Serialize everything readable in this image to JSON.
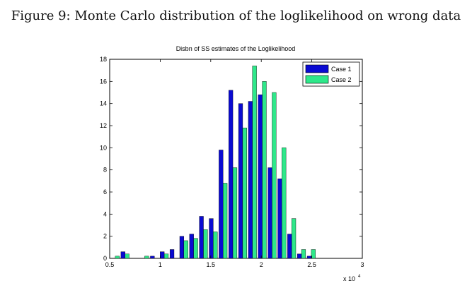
{
  "caption": "Figure 9: Monte Carlo distribution of the loglikelihood on wrong data",
  "chart_data": {
    "type": "bar",
    "title": "Disbn of SS estimates of the Loglikelihood",
    "xlabel": "",
    "ylabel": "",
    "x_multiplier": "x 10",
    "x_multiplier_exp": "4",
    "xlim": [
      0.5,
      3
    ],
    "ylim": [
      0,
      18
    ],
    "xticks": [
      0.5,
      1,
      1.5,
      2,
      2.5,
      3
    ],
    "xtick_labels": [
      "0.5",
      "1",
      "1.5",
      "2",
      "2.5",
      "3"
    ],
    "yticks": [
      0,
      2,
      4,
      6,
      8,
      10,
      12,
      14,
      16,
      18
    ],
    "ytick_labels": [
      "0",
      "2",
      "4",
      "6",
      "8",
      "10",
      "12",
      "14",
      "16",
      "18"
    ],
    "legend_position": "top-right",
    "x": [
      0.555,
      0.652,
      0.749,
      0.846,
      0.943,
      1.04,
      1.137,
      1.234,
      1.331,
      1.428,
      1.525,
      1.622,
      1.719,
      1.816,
      1.913,
      2.01,
      2.107,
      2.204,
      2.301,
      2.398,
      2.495
    ],
    "bin_width": 0.097,
    "series": [
      {
        "name": "Case 1",
        "color": "#0a0ad2",
        "values": [
          0,
          0.6,
          0,
          0,
          0.2,
          0.6,
          0.8,
          2.0,
          2.2,
          3.8,
          3.6,
          9.8,
          15.2,
          14.0,
          14.2,
          14.8,
          8.2,
          7.2,
          2.2,
          0.4,
          0.2
        ]
      },
      {
        "name": "Case 2",
        "color": "#2ee88a",
        "values": [
          0.2,
          0.4,
          0,
          0.2,
          0,
          0.4,
          0,
          1.6,
          1.8,
          2.6,
          2.4,
          6.8,
          8.2,
          11.8,
          17.4,
          16.0,
          15.0,
          10.0,
          3.6,
          0.8,
          0.8
        ]
      }
    ]
  }
}
